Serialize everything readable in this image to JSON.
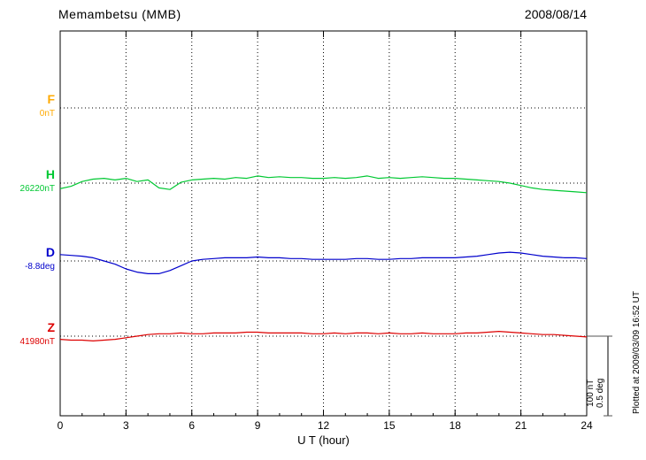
{
  "header": {
    "title": "Memambetsu (MMB)",
    "date": "2008/08/14"
  },
  "axes": {
    "x_label": "U T (hour)",
    "x_ticks": [
      0,
      3,
      6,
      9,
      12,
      15,
      18,
      21,
      24
    ],
    "x_min": 0,
    "x_max": 24,
    "grid_hours": [
      3,
      6,
      9,
      12,
      15,
      18,
      21
    ]
  },
  "scale_bar": {
    "line1": "100 nT",
    "line2": "0.5 deg"
  },
  "footnote": "Plotted at 2009/03/09 16:52 UT",
  "colors": {
    "F": "#ffaa00",
    "H": "#00c832",
    "D": "#0000cc",
    "Z": "#dd0000",
    "frame": "#000000"
  },
  "chart_data": {
    "type": "line",
    "title": "Memambetsu (MMB) magnetogram",
    "date": "2008/08/14",
    "xlabel": "U T (hour)",
    "x_range": [
      0,
      24
    ],
    "step_hours": 0.5,
    "grid": "dotted",
    "scale": {
      "nT_per_div": 100,
      "deg_per_div": 0.5
    },
    "series": [
      {
        "key": "F",
        "label": "F",
        "baseline_label": "0nT",
        "baseline_value": 0,
        "unit": "nT",
        "color": "#ffaa00",
        "values": []
      },
      {
        "key": "H",
        "label": "H",
        "baseline_label": "26220nT",
        "baseline_value": 26220,
        "unit": "nT",
        "color": "#00c832",
        "values": [
          -7,
          -4,
          2,
          5,
          6,
          4,
          6,
          2,
          4,
          -6,
          -8,
          1,
          4,
          5,
          6,
          5,
          7,
          6,
          9,
          7,
          8,
          7,
          7,
          6,
          6,
          7,
          6,
          7,
          9,
          6,
          7,
          6,
          7,
          8,
          7,
          6,
          6,
          5,
          4,
          3,
          2,
          0,
          -3,
          -6,
          -8,
          -9,
          -10,
          -11,
          -12
        ]
      },
      {
        "key": "D",
        "label": "D",
        "baseline_label": "-8.8deg",
        "baseline_value": -8.8,
        "unit": "deg",
        "color": "#0000cc",
        "values": [
          0.04,
          0.035,
          0.03,
          0.02,
          0.0,
          -0.02,
          -0.05,
          -0.07,
          -0.08,
          -0.08,
          -0.06,
          -0.03,
          0.0,
          0.01,
          0.015,
          0.02,
          0.02,
          0.02,
          0.025,
          0.02,
          0.02,
          0.015,
          0.015,
          0.01,
          0.01,
          0.01,
          0.01,
          0.015,
          0.015,
          0.01,
          0.01,
          0.015,
          0.015,
          0.02,
          0.02,
          0.02,
          0.02,
          0.025,
          0.03,
          0.04,
          0.05,
          0.055,
          0.05,
          0.04,
          0.03,
          0.025,
          0.02,
          0.02,
          0.015
        ]
      },
      {
        "key": "Z",
        "label": "Z",
        "baseline_label": "41980nT",
        "baseline_value": 41980,
        "unit": "nT",
        "color": "#dd0000",
        "values": [
          -4,
          -5,
          -5,
          -6,
          -5,
          -4,
          -2,
          0,
          2,
          3,
          3,
          4,
          3,
          3,
          4,
          4,
          4,
          5,
          5,
          4,
          4,
          4,
          4,
          3,
          3,
          4,
          3,
          4,
          4,
          3,
          4,
          3,
          3,
          4,
          3,
          3,
          3,
          4,
          4,
          5,
          6,
          5,
          4,
          3,
          2,
          2,
          1,
          0,
          -1
        ]
      }
    ]
  }
}
